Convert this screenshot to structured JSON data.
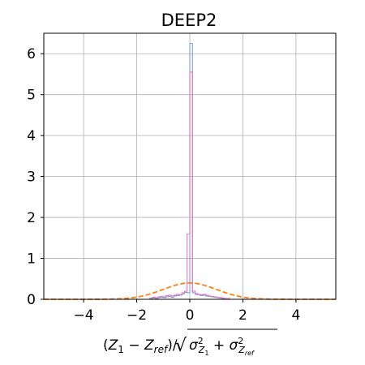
{
  "chart_data": {
    "type": "histogram",
    "title": "DEEP2",
    "xlabel": "(Z1 − Zref)/√(σ²Z1 + σ²Zref)",
    "ylabel": "",
    "xlim": [
      -5.5,
      5.5
    ],
    "ylim": [
      0,
      6.5
    ],
    "xticks": [
      -4,
      -2,
      0,
      2,
      4
    ],
    "xtick_labels": [
      "−4",
      "−2",
      "0",
      "2",
      "4"
    ],
    "yticks": [
      0,
      1,
      2,
      3,
      4,
      5,
      6
    ],
    "ytick_labels": [
      "0",
      "1",
      "2",
      "3",
      "4",
      "5",
      "6"
    ],
    "grid": true,
    "bin_width": 0.1,
    "series": [
      {
        "kind": "step",
        "color": "#7f9fe0",
        "bins": [
          [
            -1.5,
            0.02
          ],
          [
            -1.4,
            0.03
          ],
          [
            -1.3,
            0.02
          ],
          [
            -1.2,
            0.04
          ],
          [
            -1.1,
            0.05
          ],
          [
            -1.0,
            0.04
          ],
          [
            -0.9,
            0.06
          ],
          [
            -0.8,
            0.07
          ],
          [
            -0.7,
            0.05
          ],
          [
            -0.6,
            0.08
          ],
          [
            -0.5,
            0.09
          ],
          [
            -0.4,
            0.1
          ],
          [
            -0.3,
            0.13
          ],
          [
            -0.2,
            0.17
          ],
          [
            -0.1,
            0.16
          ],
          [
            0.0,
            6.25
          ],
          [
            0.1,
            0.16
          ],
          [
            0.2,
            0.12
          ],
          [
            0.3,
            0.11
          ],
          [
            0.4,
            0.09
          ],
          [
            0.5,
            0.1
          ],
          [
            0.6,
            0.08
          ],
          [
            0.7,
            0.07
          ],
          [
            0.8,
            0.06
          ],
          [
            0.9,
            0.05
          ],
          [
            1.0,
            0.04
          ],
          [
            1.1,
            0.03
          ],
          [
            1.2,
            0.02
          ],
          [
            1.3,
            0.02
          ],
          [
            1.4,
            0.01
          ]
        ]
      },
      {
        "kind": "step",
        "color": "#e377c2",
        "bins": [
          [
            -1.5,
            0.03
          ],
          [
            -1.4,
            0.05
          ],
          [
            -1.3,
            0.04
          ],
          [
            -1.2,
            0.06
          ],
          [
            -1.1,
            0.07
          ],
          [
            -1.0,
            0.06
          ],
          [
            -0.9,
            0.09
          ],
          [
            -0.8,
            0.1
          ],
          [
            -0.7,
            0.08
          ],
          [
            -0.6,
            0.1
          ],
          [
            -0.5,
            0.12
          ],
          [
            -0.4,
            0.11
          ],
          [
            -0.3,
            0.16
          ],
          [
            -0.2,
            0.2
          ],
          [
            -0.1,
            1.6
          ],
          [
            0.0,
            5.55
          ],
          [
            0.1,
            0.2
          ],
          [
            0.2,
            0.14
          ],
          [
            0.3,
            0.12
          ],
          [
            0.4,
            0.11
          ],
          [
            0.5,
            0.12
          ],
          [
            0.6,
            0.1
          ],
          [
            0.7,
            0.08
          ],
          [
            0.8,
            0.07
          ],
          [
            0.9,
            0.06
          ],
          [
            1.0,
            0.05
          ],
          [
            1.1,
            0.04
          ],
          [
            1.2,
            0.03
          ],
          [
            1.3,
            0.02
          ],
          [
            1.4,
            0.02
          ]
        ]
      },
      {
        "kind": "gaussian",
        "color": "#ff7f0e",
        "dash": true,
        "mean": 0,
        "sigma": 1,
        "peak": 0.399
      }
    ]
  }
}
